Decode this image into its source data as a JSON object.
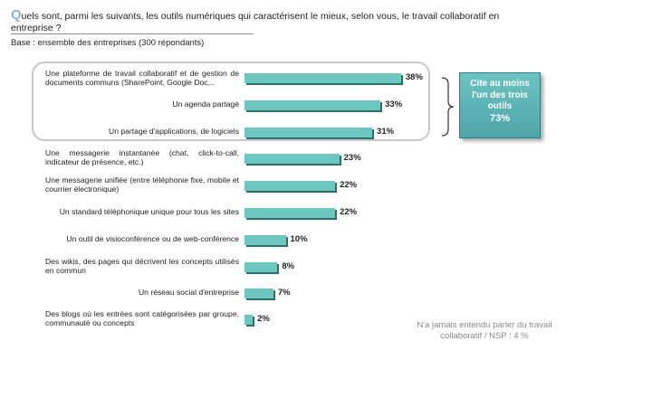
{
  "question": {
    "first_letter": "Q",
    "text": "uels sont, parmi les suivants, les outils numériques qui caractérisent le mieux, selon vous, le travail collaboratif en entreprise ?"
  },
  "base": "Base : ensemble des entreprises (300 répondants)",
  "summary_box": {
    "line1": "Cite au moins",
    "line2": "l'un des trois",
    "line3": "outils",
    "value": "73%"
  },
  "note": "N'a jamais entendu parler du travail collaboratif  / NSP : 4 %",
  "colors": {
    "bar": "#6ec6c0",
    "bar_shadow": "#2c6f6b",
    "summary": "#5ab4b5",
    "q_letter": "#8fb3d9"
  },
  "chart_data": {
    "type": "bar",
    "orientation": "horizontal",
    "categories": [
      "Une plateforme de travail collaboratif et de gestion de documents communs (SharePoint, Google Doc,..",
      "Un agenda partagé",
      "Un partage d'applications, de logiciels",
      "Une messagerie instantanée (chat, click-to-call, indicateur de présence, etc.)",
      "Une messagerie unifiée (entre téléphonie fixe, mobile et courrier électronique)",
      "Un standard téléphonique unique pour tous les sites",
      "Un outil de visioconférence ou de web-conférence",
      "Des wikis, des pages qui décrivent les concepts utilisés en commun",
      "Un réseau social d'entreprise",
      "Des blogs où les entrées sont catégorisées par groupe, communauté ou concepts"
    ],
    "values": [
      38,
      33,
      31,
      23,
      22,
      22,
      10,
      8,
      7,
      2
    ],
    "value_labels": [
      "38%",
      "33%",
      "31%",
      "23%",
      "22%",
      "22%",
      "10%",
      "8%",
      "7%",
      "2%"
    ],
    "unit": "%",
    "grid": false
  }
}
